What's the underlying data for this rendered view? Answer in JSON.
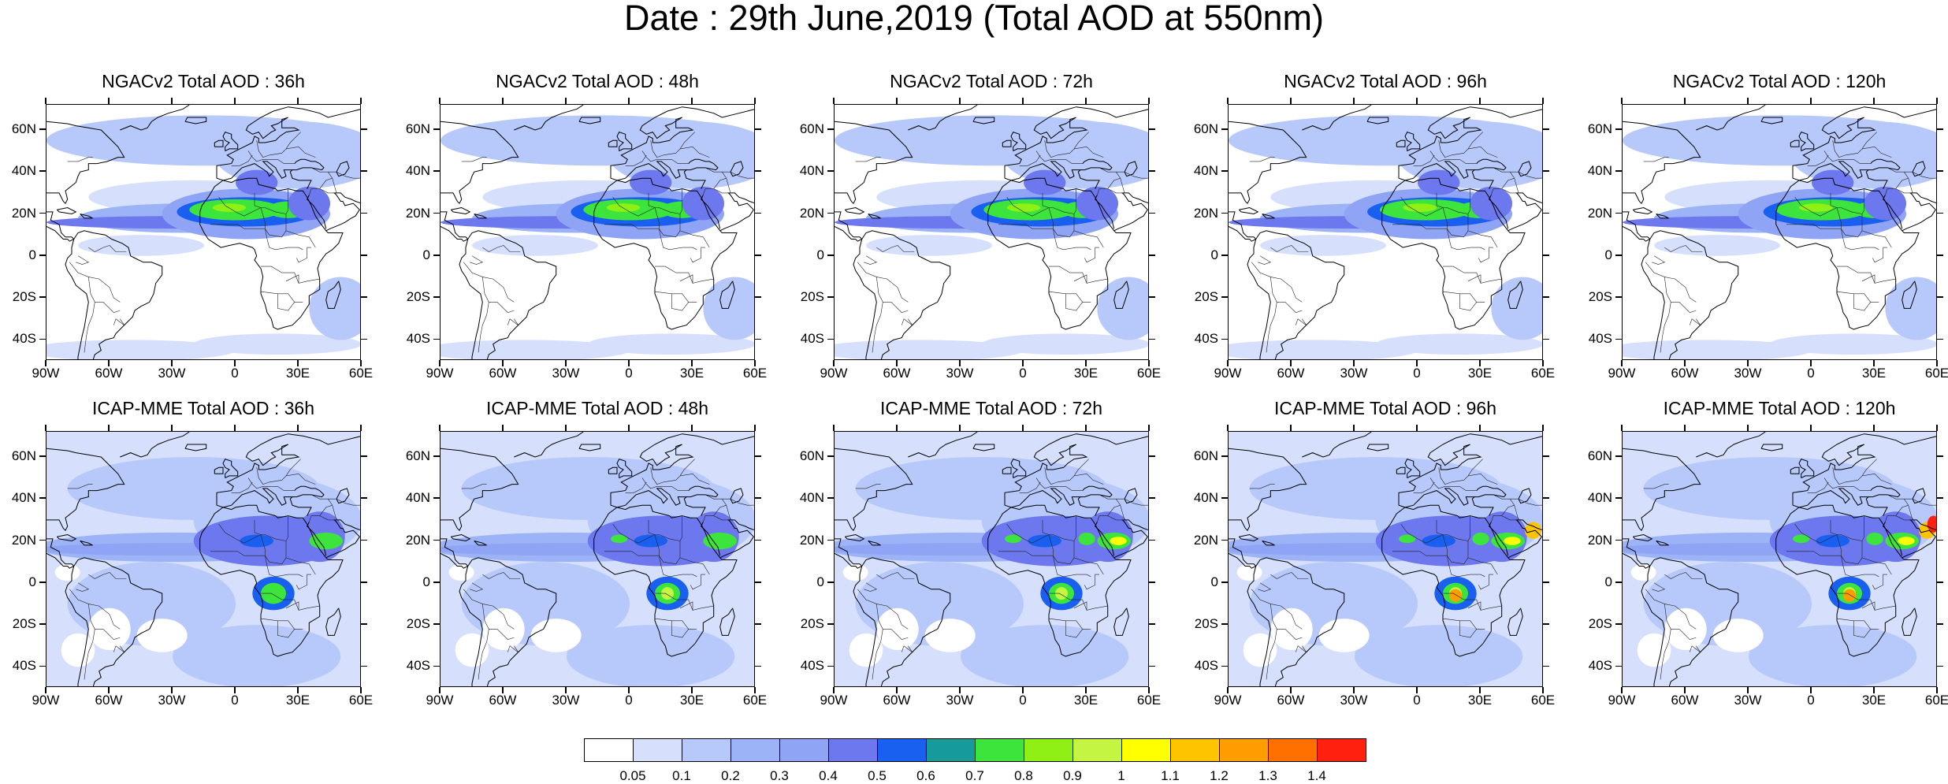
{
  "title": "Date : 29th June,2019 (Total AOD at 550nm)",
  "lat_labels": [
    "60N",
    "40N",
    "20N",
    "0",
    "20S",
    "40S"
  ],
  "lon_labels": [
    "90W",
    "60W",
    "30W",
    "0",
    "30E",
    "60E"
  ],
  "lat_values": [
    60,
    40,
    20,
    0,
    -20,
    -40
  ],
  "lon_values": [
    -90,
    -60,
    -30,
    0,
    30,
    60
  ],
  "map_extent": {
    "lon": [
      -90,
      60
    ],
    "lat": [
      -50,
      72
    ]
  },
  "panels": [
    {
      "title": "NGACv2 Total AOD : 36h",
      "model": "NGACv2",
      "forecast_hour": 36
    },
    {
      "title": "NGACv2 Total AOD : 48h",
      "model": "NGACv2",
      "forecast_hour": 48
    },
    {
      "title": "NGACv2 Total AOD : 72h",
      "model": "NGACv2",
      "forecast_hour": 72
    },
    {
      "title": "NGACv2 Total AOD : 96h",
      "model": "NGACv2",
      "forecast_hour": 96
    },
    {
      "title": "NGACv2 Total AOD : 120h",
      "model": "NGACv2",
      "forecast_hour": 120
    },
    {
      "title": "ICAP-MME Total AOD : 36h",
      "model": "ICAP-MME",
      "forecast_hour": 36
    },
    {
      "title": "ICAP-MME Total AOD : 48h",
      "model": "ICAP-MME",
      "forecast_hour": 48
    },
    {
      "title": "ICAP-MME Total AOD : 72h",
      "model": "ICAP-MME",
      "forecast_hour": 72
    },
    {
      "title": "ICAP-MME Total AOD : 96h",
      "model": "ICAP-MME",
      "forecast_hour": 96
    },
    {
      "title": "ICAP-MME Total AOD : 120h",
      "model": "ICAP-MME",
      "forecast_hour": 120
    }
  ],
  "colorbar": {
    "labels": [
      "0.05",
      "0.1",
      "0.2",
      "0.3",
      "0.4",
      "0.5",
      "0.6",
      "0.7",
      "0.8",
      "0.9",
      "1",
      "1.1",
      "1.2",
      "1.3",
      "1.4"
    ],
    "colors": [
      "#ffffff",
      "#d6e0fc",
      "#b7c8fa",
      "#9cb3f7",
      "#8fa4f4",
      "#6d78ee",
      "#1a60f0",
      "#169a9a",
      "#3ce43c",
      "#8ef014",
      "#c4f542",
      "#ffff00",
      "#ffc400",
      "#ff9c00",
      "#ff7000",
      "#ff2010"
    ]
  }
}
